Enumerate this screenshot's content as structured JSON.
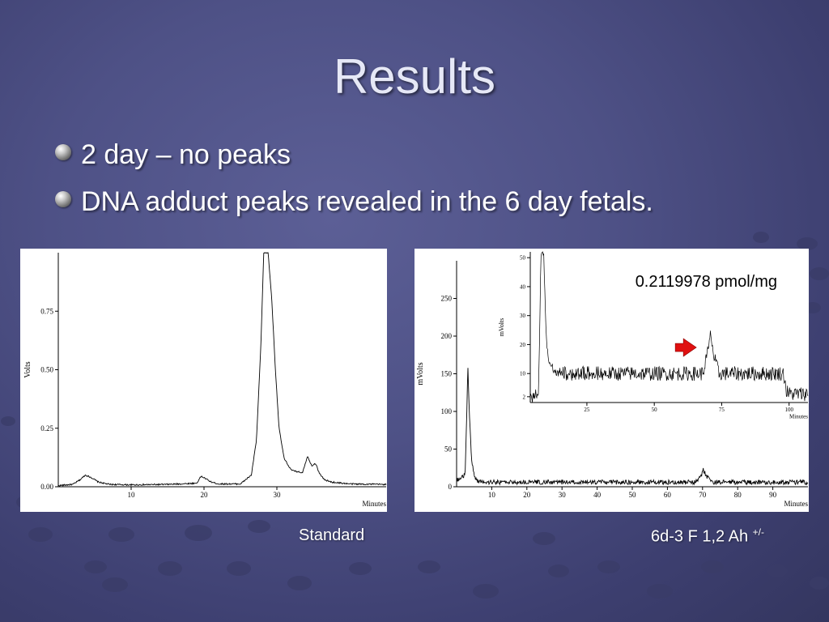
{
  "slide": {
    "title": "Results",
    "bullets": [
      "2 day – no peaks",
      "DNA adduct peaks revealed in the 6 day fetals."
    ],
    "captions": {
      "left": "Standard",
      "right_main": "6d-3 F 1,2 Ah ",
      "right_sup": "+/-"
    },
    "concentration": "0.2119978 pmol/mg",
    "colors": {
      "background": "#4e5186",
      "trace": "#000000",
      "arrow": "#e01010"
    }
  },
  "chart_data": [
    {
      "type": "line",
      "name": "Standard",
      "xlabel": "Minutes",
      "ylabel": "Volts",
      "xlim": [
        0,
        45
      ],
      "ylim": [
        0,
        1.0
      ],
      "xticks": [
        10,
        20,
        30
      ],
      "yticks": [
        0.0,
        0.25,
        0.5,
        0.75
      ],
      "ytick_labels": [
        "0.00",
        "0.25",
        "0.50",
        "0.75"
      ],
      "noise": 0.003,
      "series": [
        {
          "x": [
            0,
            2,
            3,
            3.7,
            4.5,
            5.5,
            7,
            10,
            15,
            19,
            19.6,
            20.2,
            21,
            22,
            25,
            26.5,
            27.2,
            27.8,
            28.2,
            28.8,
            29.3,
            29.8,
            30.3,
            31,
            32,
            33.5,
            34.2,
            34.8,
            35.3,
            35.8,
            36.5,
            37.5,
            40,
            45
          ],
          "y": [
            0.005,
            0.01,
            0.03,
            0.05,
            0.04,
            0.02,
            0.01,
            0.008,
            0.01,
            0.015,
            0.045,
            0.035,
            0.02,
            0.012,
            0.012,
            0.05,
            0.2,
            0.6,
            1.0,
            1.0,
            0.8,
            0.5,
            0.25,
            0.12,
            0.07,
            0.06,
            0.13,
            0.09,
            0.1,
            0.06,
            0.03,
            0.02,
            0.012,
            0.01
          ]
        }
      ]
    },
    {
      "type": "line",
      "name": "6d-3 F 1,2 Ah +/-",
      "xlabel": "Minutes",
      "ylabel": "mVolts",
      "xlim": [
        0,
        100
      ],
      "ylim": [
        0,
        300
      ],
      "xticks": [
        10,
        20,
        30,
        40,
        50,
        60,
        70,
        80,
        90
      ],
      "yticks": [
        0,
        50,
        100,
        150,
        200,
        250
      ],
      "noise": 3,
      "series": [
        {
          "x": [
            0,
            2.4,
            2.9,
            3.2,
            3.6,
            4.2,
            5,
            6,
            8,
            20,
            40,
            60,
            68,
            69.5,
            70.2,
            71.2,
            73,
            80,
            90,
            100
          ],
          "y": [
            8,
            15,
            100,
            160,
            100,
            40,
            14,
            8,
            6,
            6,
            6,
            6,
            6,
            14,
            22,
            14,
            6,
            6,
            6,
            6
          ]
        }
      ]
    },
    {
      "type": "line",
      "name": "inset",
      "xlabel": "Minutes",
      "ylabel": "mVolts",
      "xlim": [
        4,
        107
      ],
      "ylim": [
        0,
        52
      ],
      "xticks": [
        25,
        50,
        75,
        100
      ],
      "yticks": [
        2,
        10,
        20,
        30,
        40,
        50
      ],
      "noise": 2.5,
      "series": [
        {
          "x": [
            4,
            7,
            8,
            9,
            10,
            12,
            15,
            20,
            40,
            60,
            68,
            70,
            71,
            72,
            74,
            80,
            90,
            98,
            99,
            100,
            107
          ],
          "y": [
            2,
            2,
            52,
            52,
            20,
            12,
            10,
            10,
            10,
            10,
            10,
            18,
            24,
            16,
            10,
            10,
            10,
            10,
            4,
            3,
            3
          ]
        }
      ],
      "marker": {
        "type": "arrow",
        "x": 62,
        "y": 19
      }
    }
  ]
}
